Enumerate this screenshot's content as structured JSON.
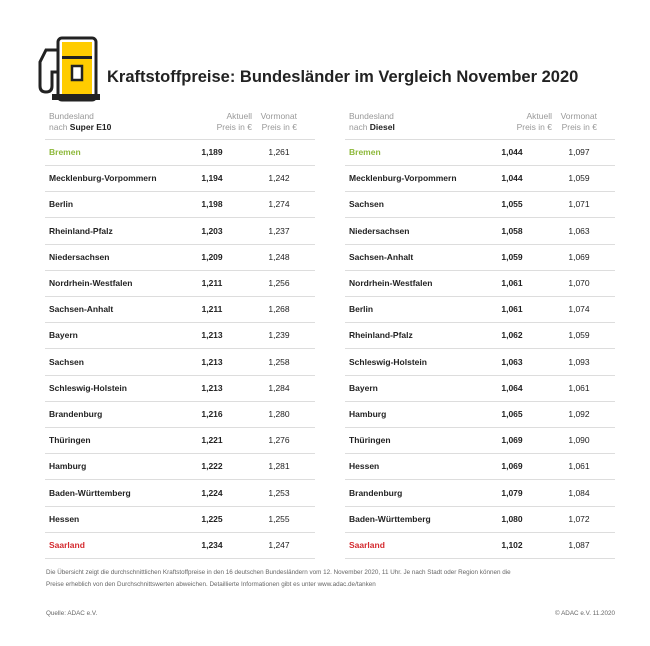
{
  "header": {
    "title": "Kraftstoffpreise: Bundesländer im Vergleich November 2020"
  },
  "tables": [
    {
      "header": {
        "name_line1": "Bundesland",
        "name_line2": "nach ",
        "name_fuel": "Super E10",
        "current_line1": "Aktuell",
        "current_line2": "Preis in €",
        "previous_line1": "Vormonat",
        "previous_line2": "Preis in €"
      },
      "rows": [
        [
          "Bremen",
          "1,189",
          "1,261"
        ],
        [
          "Mecklenburg-Vorpommern",
          "1,194",
          "1,242"
        ],
        [
          "Berlin",
          "1,198",
          "1,274"
        ],
        [
          "Rheinland-Pfalz",
          "1,203",
          "1,237"
        ],
        [
          "Niedersachsen",
          "1,209",
          "1,248"
        ],
        [
          "Nordrhein-Westfalen",
          "1,211",
          "1,256"
        ],
        [
          "Sachsen-Anhalt",
          "1,211",
          "1,268"
        ],
        [
          "Bayern",
          "1,213",
          "1,239"
        ],
        [
          "Sachsen",
          "1,213",
          "1,258"
        ],
        [
          "Schleswig-Holstein",
          "1,213",
          "1,284"
        ],
        [
          "Brandenburg",
          "1,216",
          "1,280"
        ],
        [
          "Thüringen",
          "1,221",
          "1,276"
        ],
        [
          "Hamburg",
          "1,222",
          "1,281"
        ],
        [
          "Baden-Württemberg",
          "1,224",
          "1,253"
        ],
        [
          "Hessen",
          "1,225",
          "1,255"
        ],
        [
          "Saarland",
          "1,234",
          "1,247"
        ]
      ]
    },
    {
      "header": {
        "name_line1": "Bundesland",
        "name_line2": "nach ",
        "name_fuel": "Diesel",
        "current_line1": "Aktuell",
        "current_line2": "Preis in €",
        "previous_line1": "Vormonat",
        "previous_line2": "Preis in €"
      },
      "rows": [
        [
          "Bremen",
          "1,044",
          "1,097"
        ],
        [
          "Mecklenburg-Vorpommern",
          "1,044",
          "1,059"
        ],
        [
          "Sachsen",
          "1,055",
          "1,071"
        ],
        [
          "Niedersachsen",
          "1,058",
          "1,063"
        ],
        [
          "Sachsen-Anhalt",
          "1,059",
          "1,069"
        ],
        [
          "Nordrhein-Westfalen",
          "1,061",
          "1,070"
        ],
        [
          "Berlin",
          "1,061",
          "1,074"
        ],
        [
          "Rheinland-Pfalz",
          "1,062",
          "1,059"
        ],
        [
          "Schleswig-Holstein",
          "1,063",
          "1,093"
        ],
        [
          "Bayern",
          "1,064",
          "1,061"
        ],
        [
          "Hamburg",
          "1,065",
          "1,092"
        ],
        [
          "Thüringen",
          "1,069",
          "1,090"
        ],
        [
          "Hessen",
          "1,069",
          "1,061"
        ],
        [
          "Brandenburg",
          "1,079",
          "1,084"
        ],
        [
          "Baden-Württemberg",
          "1,080",
          "1,072"
        ],
        [
          "Saarland",
          "1,102",
          "1,087"
        ]
      ]
    }
  ],
  "footer": {
    "note_line1": "Die Übersicht zeigt die durchschnittlichen Kraftstoffpreise in den 16 deutschen Bundesländern vom 12. November 2020, 11 Uhr. Je nach Stadt oder Region können die",
    "note_line2": "Preise erheblich von den Durchschnittswerten abweichen. Detaillierte Informationen gibt es unter www.adac.de/tanken",
    "source": "Quelle: ADAC e.V.",
    "copyright": "© ADAC e.V. 11.2020"
  }
}
